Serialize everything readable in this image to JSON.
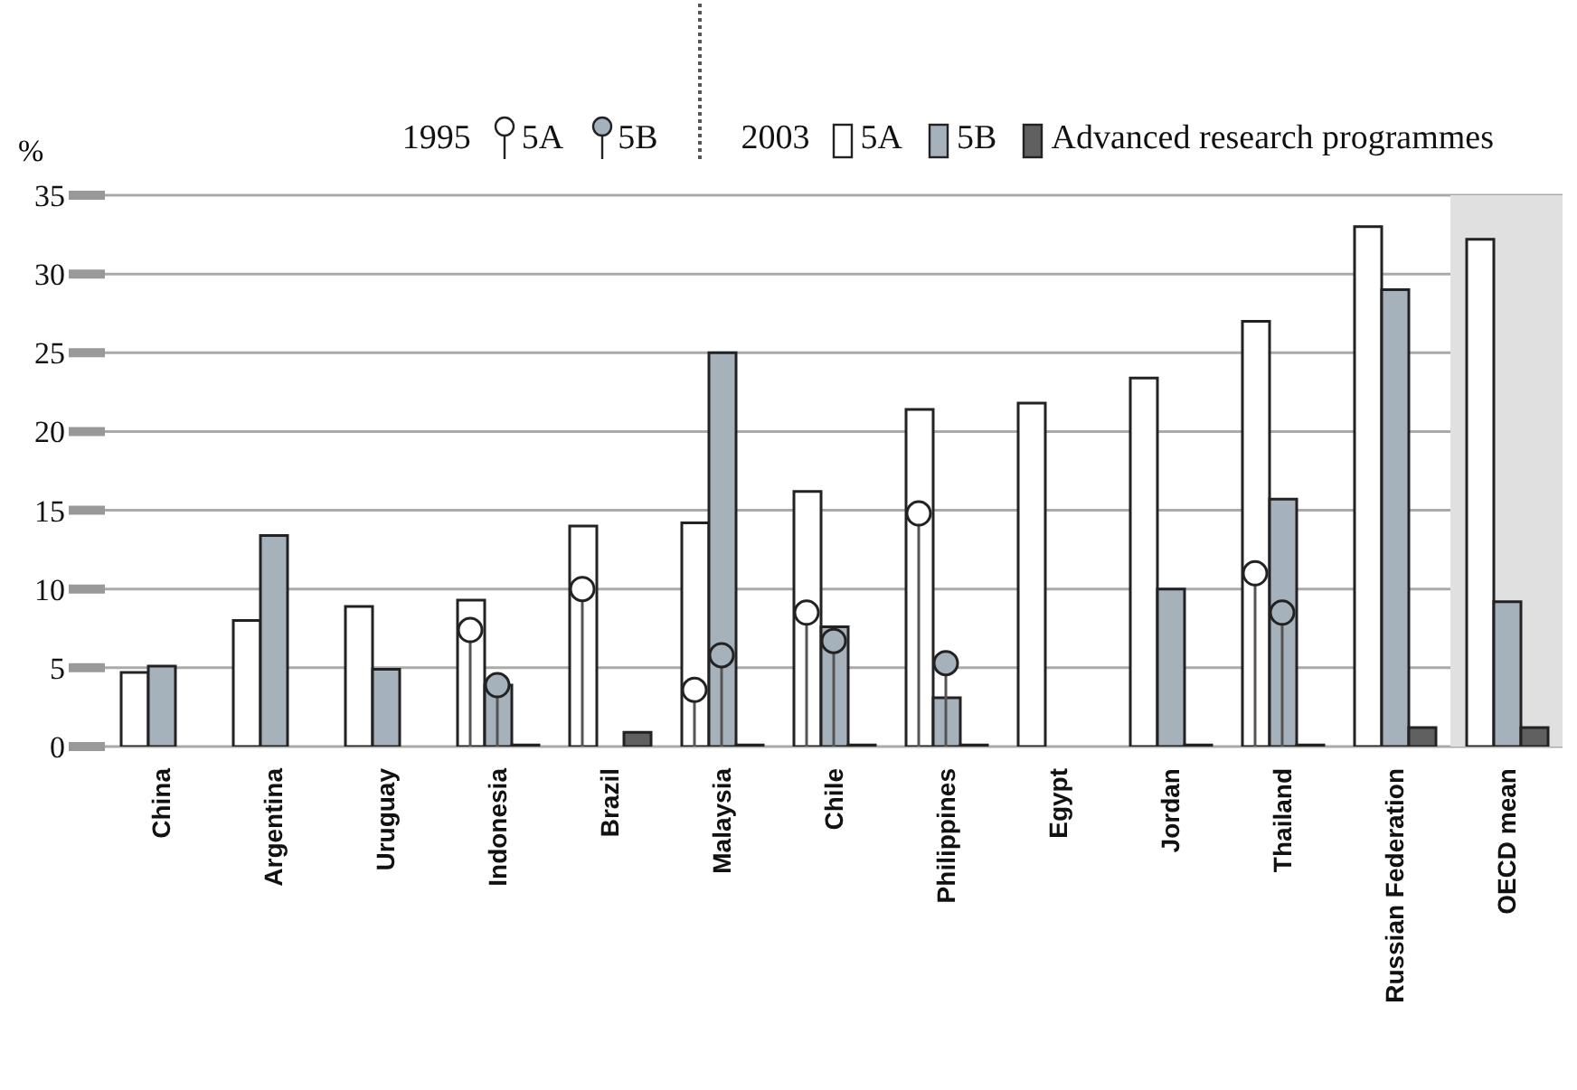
{
  "chart_data": {
    "type": "bar",
    "ylabel": "%",
    "categories": [
      "China",
      "Argentina",
      "Uruguay",
      "Indonesia",
      "Brazil",
      "Malaysia",
      "Chile",
      "Philippines",
      "Egypt",
      "Jordan",
      "Thailand",
      "Russian Federation",
      "OECD mean"
    ],
    "series": [
      {
        "name": "5A",
        "type": "lollipop",
        "color": "#ffffff",
        "values": [
          null,
          null,
          null,
          7.4,
          10.0,
          3.6,
          8.5,
          14.8,
          null,
          null,
          11.0,
          null,
          null
        ]
      },
      {
        "name": "5B",
        "type": "lollipop",
        "color": "#a5b1bb",
        "values": [
          null,
          null,
          null,
          3.9,
          null,
          5.8,
          6.7,
          5.3,
          null,
          null,
          8.5,
          null,
          null
        ]
      },
      {
        "name": "5A",
        "color": "#ffffff",
        "values": [
          4.7,
          8.0,
          8.9,
          9.3,
          14.0,
          14.2,
          16.2,
          21.4,
          21.8,
          23.4,
          27.0,
          33.0,
          32.2
        ]
      },
      {
        "name": "5B",
        "color": "#a5b1bb",
        "values": [
          5.1,
          13.4,
          4.9,
          3.9,
          null,
          25.0,
          7.6,
          3.1,
          null,
          10.0,
          15.7,
          29.0,
          9.2
        ]
      },
      {
        "name": "Advanced research programmes",
        "color": "#606060",
        "values": [
          null,
          null,
          null,
          0.1,
          0.9,
          0.1,
          0.1,
          0.1,
          null,
          0.1,
          0.1,
          1.2,
          1.2
        ]
      }
    ],
    "ylim": [
      0,
      35
    ],
    "yticks": [
      0,
      5,
      10,
      15,
      20,
      25,
      30,
      35
    ],
    "grid": "y",
    "legend": "top",
    "bands": [
      {
        "axis": "x",
        "from": "OECD mean",
        "to": "OECD mean",
        "color": "#e0e0e0"
      }
    ],
    "annotations": [
      "1995",
      "2003"
    ]
  }
}
